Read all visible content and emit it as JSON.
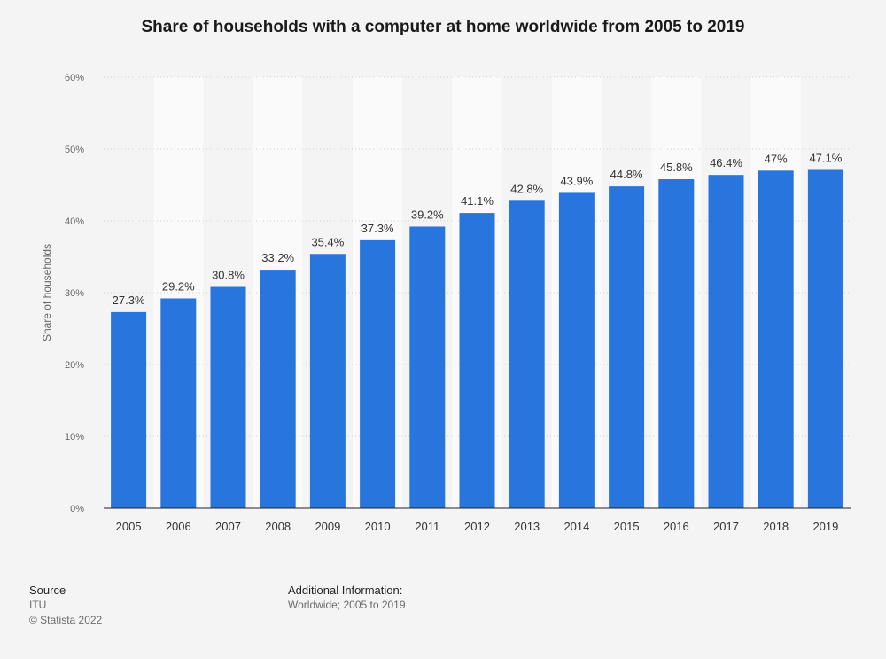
{
  "chart_data": {
    "type": "bar",
    "title": "Share of households with a computer at home worldwide from 2005 to 2019",
    "ylabel": "Share of households",
    "xlabel": "",
    "categories": [
      "2005",
      "2006",
      "2007",
      "2008",
      "2009",
      "2010",
      "2011",
      "2012",
      "2013",
      "2014",
      "2015",
      "2016",
      "2017",
      "2018",
      "2019"
    ],
    "values": [
      27.3,
      29.2,
      30.8,
      33.2,
      35.4,
      37.3,
      39.2,
      41.1,
      42.8,
      43.9,
      44.8,
      45.8,
      46.4,
      47.0,
      47.1
    ],
    "value_labels": [
      "27.3%",
      "29.2%",
      "30.8%",
      "33.2%",
      "35.4%",
      "37.3%",
      "39.2%",
      "41.1%",
      "42.8%",
      "43.9%",
      "44.8%",
      "45.8%",
      "46.4%",
      "47%",
      "47.1%"
    ],
    "ylim": [
      0,
      60
    ],
    "yticks": [
      0,
      10,
      20,
      30,
      40,
      50,
      60
    ],
    "ytick_labels": [
      "0%",
      "10%",
      "20%",
      "30%",
      "40%",
      "50%",
      "60%"
    ],
    "grid": true,
    "bar_color": "#2876dd"
  },
  "footer": {
    "source_heading": "Source",
    "source_name": "ITU",
    "copyright": "© Statista 2022",
    "info_heading": "Additional Information:",
    "info_text": "Worldwide; 2005 to 2019"
  }
}
